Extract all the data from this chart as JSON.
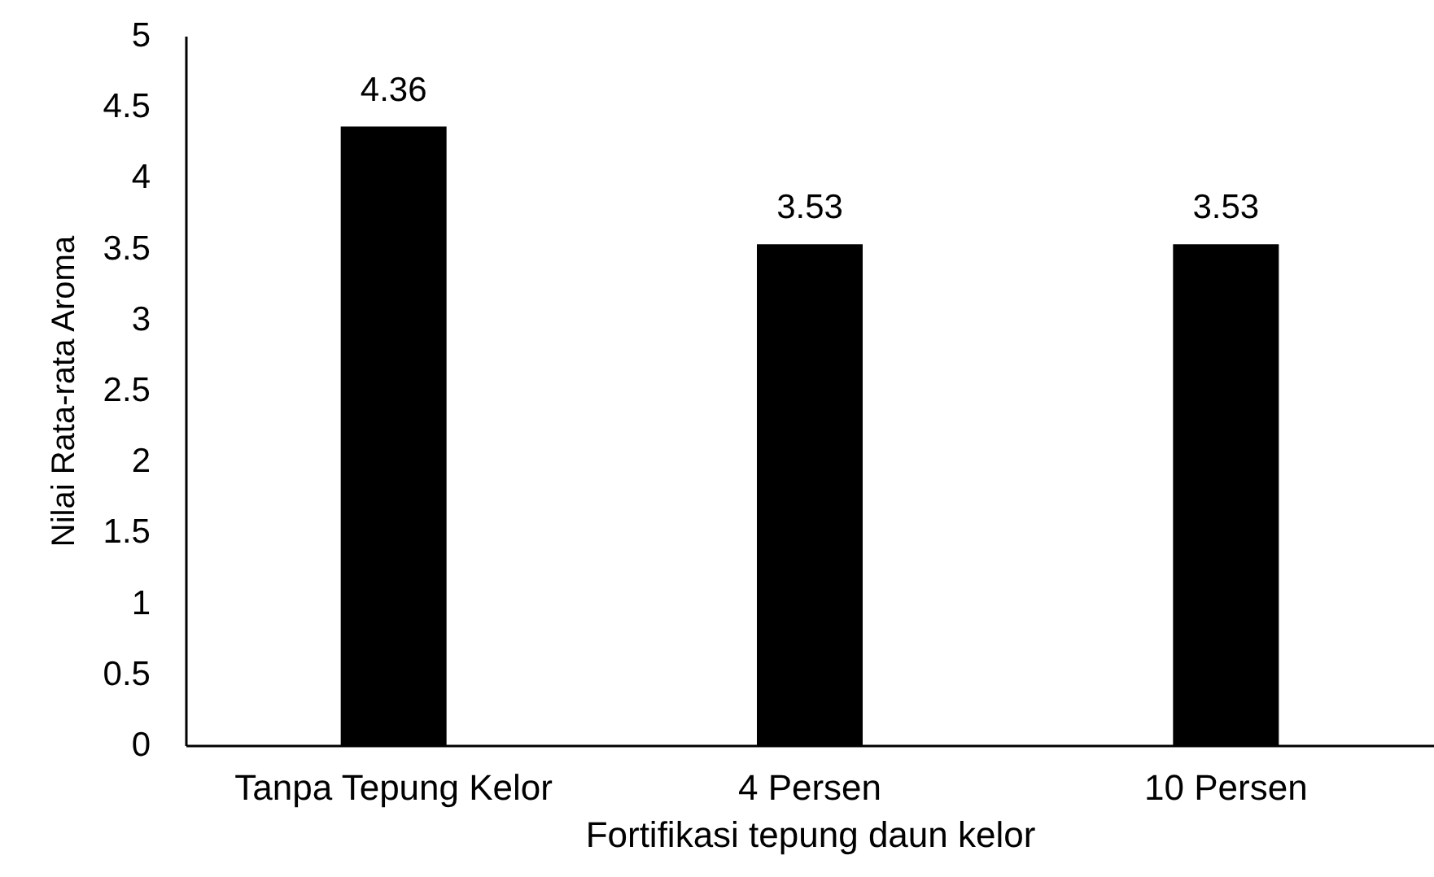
{
  "chart_data": {
    "type": "bar",
    "xlabel": "Fortifikasi tepung daun kelor",
    "ylabel": "Nilai Rata-rata Aroma",
    "categories": [
      "Tanpa Tepung Kelor",
      "4 Persen",
      "10 Persen"
    ],
    "values": [
      4.36,
      3.53,
      3.53
    ],
    "colors": [
      "#000000",
      "#000000",
      "#000000"
    ],
    "ylim": [
      0,
      5
    ],
    "yticks": [
      0,
      0.5,
      1,
      1.5,
      2,
      2.5,
      3,
      3.5,
      4,
      4.5,
      5
    ],
    "data_labels": true
  }
}
